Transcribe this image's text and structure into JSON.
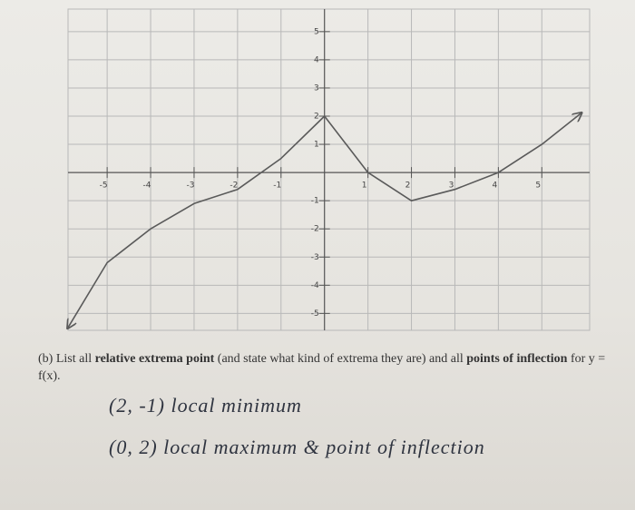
{
  "chart_data": {
    "type": "line",
    "x": [
      -5.9,
      -5,
      -4,
      -3,
      -2,
      -1,
      0,
      1,
      2,
      3,
      4,
      5,
      5.9
    ],
    "values": [
      -5.5,
      -3.2,
      -2,
      -1.1,
      -0.6,
      0.5,
      2,
      0,
      -1,
      -0.6,
      0,
      1,
      2.1
    ],
    "color": "#5a5a5a",
    "xlim": [
      -5.9,
      6.1
    ],
    "ylim": [
      -5.6,
      5.8
    ],
    "xticks": [
      -5,
      -4,
      -3,
      -2,
      -1,
      1,
      2,
      3,
      4,
      5
    ],
    "yticks": [
      -5,
      -4,
      -3,
      -2,
      -1,
      1,
      2,
      3,
      4,
      5
    ],
    "grid": true
  },
  "question": [
    "(b) List all ",
    "relative extrema point",
    " (and state what kind of extrema they are) and all ",
    "points of inflection",
    " for y = f(x)."
  ],
  "answers": [
    "(2, -1) local minimum",
    "(0, 2) local maximum & point of inflection"
  ]
}
